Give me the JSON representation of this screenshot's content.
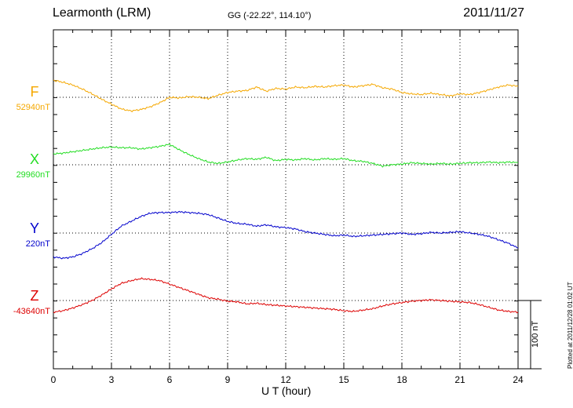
{
  "header": {
    "station": "Learmonth (LRM)",
    "coords": "GG (-22.22°, 114.10°)",
    "date": "2011/11/27"
  },
  "components": [
    {
      "letter": "F",
      "baseline": "52940nT",
      "color": "#f5a800"
    },
    {
      "letter": "X",
      "baseline": "29960nT",
      "color": "#22dd22"
    },
    {
      "letter": "Y",
      "baseline": "220nT",
      "color": "#0000cc"
    },
    {
      "letter": "Z",
      "baseline": "-43640nT",
      "color": "#dd0000"
    }
  ],
  "scale": {
    "label": "100 nT"
  },
  "plotted": "Plotted at 2011/12/28 01:02 UT",
  "chart_data": {
    "type": "line",
    "xlabel": "U T (hour)",
    "xlim": [
      0,
      24
    ],
    "xticks": [
      "0",
      "3",
      "6",
      "9",
      "12",
      "15",
      "18",
      "21",
      "24"
    ],
    "y_units": "nT offset from baseline",
    "grid": true,
    "series": [
      {
        "name": "F",
        "baseline_nT": 52940,
        "x": [
          0,
          0.5,
          1,
          1.5,
          2,
          2.5,
          3,
          3.5,
          4,
          4.5,
          5,
          5.5,
          6,
          6.5,
          7,
          7.5,
          8,
          8.5,
          9,
          9.5,
          10,
          10.5,
          11,
          11.5,
          12,
          12.5,
          13,
          13.5,
          14,
          14.5,
          15,
          15.5,
          16,
          16.5,
          17,
          17.5,
          18,
          18.5,
          19,
          19.5,
          20,
          20.5,
          21,
          21.5,
          22,
          22.5,
          23,
          23.5,
          24
        ],
        "y": [
          25,
          22,
          18,
          12,
          5,
          -3,
          -10,
          -17,
          -20,
          -18,
          -14,
          -8,
          0,
          -1,
          1,
          0,
          -2,
          3,
          7,
          9,
          10,
          15,
          9,
          13,
          12,
          15,
          14,
          16,
          15,
          17,
          18,
          15,
          17,
          19,
          14,
          12,
          7,
          5,
          4,
          6,
          4,
          2,
          5,
          4,
          7,
          11,
          15,
          18,
          16
        ]
      },
      {
        "name": "X",
        "baseline_nT": 29960,
        "x": [
          0,
          0.5,
          1,
          1.5,
          2,
          2.5,
          3,
          3.5,
          4,
          4.5,
          5,
          5.5,
          6,
          6.5,
          7,
          7.5,
          8,
          8.5,
          9,
          9.5,
          10,
          10.5,
          11,
          11.5,
          12,
          12.5,
          13,
          13.5,
          14,
          14.5,
          15,
          15.5,
          16,
          16.5,
          17,
          17.5,
          18,
          18.5,
          19,
          19.5,
          20,
          20.5,
          21,
          21.5,
          22,
          22.5,
          23,
          23.5,
          24
        ],
        "y": [
          16,
          17,
          19,
          21,
          23,
          25,
          26,
          25,
          25,
          23,
          25,
          27,
          30,
          22,
          15,
          9,
          4,
          2,
          4,
          7,
          9,
          8,
          11,
          6,
          8,
          7,
          9,
          7,
          9,
          8,
          9,
          6,
          5,
          2,
          -2,
          0,
          1,
          3,
          2,
          1,
          2,
          1,
          2,
          3,
          3,
          4,
          3,
          4,
          3
        ]
      },
      {
        "name": "Y",
        "baseline_nT": 220,
        "x": [
          0,
          0.5,
          1,
          1.5,
          2,
          2.5,
          3,
          3.5,
          4,
          4.5,
          5,
          5.5,
          6,
          6.5,
          7,
          7.5,
          8,
          8.5,
          9,
          9.5,
          10,
          10.5,
          11,
          11.5,
          12,
          12.5,
          13,
          13.5,
          14,
          14.5,
          15,
          15.5,
          16,
          16.5,
          17,
          17.5,
          18,
          18.5,
          19,
          19.5,
          20,
          20.5,
          21,
          21.5,
          22,
          22.5,
          23,
          23.5,
          24
        ],
        "y": [
          -35,
          -37,
          -35,
          -30,
          -23,
          -14,
          -2,
          10,
          17,
          24,
          29,
          30,
          30,
          31,
          30,
          29,
          27,
          22,
          17,
          14,
          13,
          10,
          12,
          9,
          8,
          6,
          2,
          0,
          -2,
          -4,
          -3,
          -5,
          -4,
          -3,
          -2,
          -1,
          0,
          -2,
          -1,
          1,
          0,
          1,
          2,
          0,
          -2,
          -5,
          -10,
          -15,
          -22
        ]
      },
      {
        "name": "Z",
        "baseline_nT": -43640,
        "x": [
          0,
          0.5,
          1,
          1.5,
          2,
          2.5,
          3,
          3.5,
          4,
          4.5,
          5,
          5.5,
          6,
          6.5,
          7,
          7.5,
          8,
          8.5,
          9,
          9.5,
          10,
          10.5,
          11,
          11.5,
          12,
          12.5,
          13,
          13.5,
          14,
          14.5,
          15,
          15.5,
          16,
          16.5,
          17,
          17.5,
          18,
          18.5,
          19,
          19.5,
          20,
          20.5,
          21,
          21.5,
          22,
          22.5,
          23,
          23.5,
          24
        ],
        "y": [
          -17,
          -15,
          -11,
          -6,
          0,
          8,
          17,
          25,
          29,
          32,
          31,
          29,
          24,
          19,
          14,
          9,
          4,
          2,
          -1,
          -2,
          -5,
          -4,
          -6,
          -7,
          -8,
          -9,
          -10,
          -11,
          -12,
          -13,
          -15,
          -16,
          -14,
          -12,
          -8,
          -5,
          -3,
          -1,
          0,
          1,
          0,
          -1,
          -2,
          -3,
          -6,
          -10,
          -14,
          -16,
          -17
        ]
      }
    ]
  }
}
